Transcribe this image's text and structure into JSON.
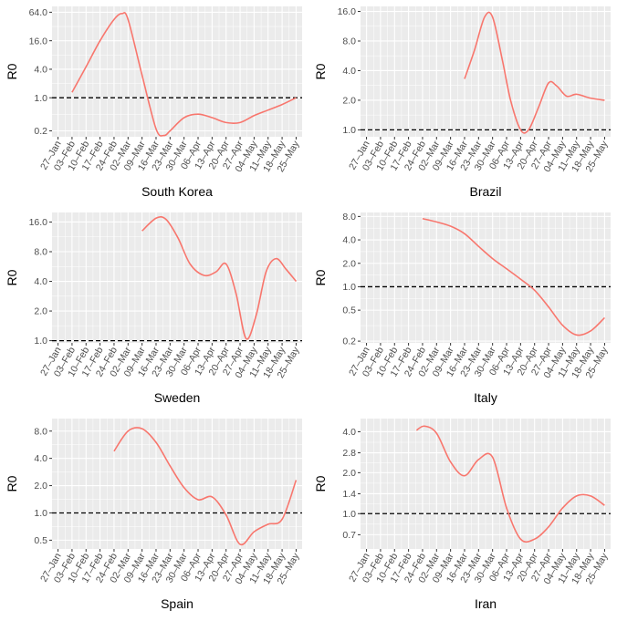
{
  "chart_data": [
    {
      "type": "line",
      "country": "South Korea",
      "ylabel": "R0",
      "y_ticks": [
        0.2,
        1.0,
        4.0,
        16.0,
        64.0
      ],
      "y_tick_labels": [
        "0.2",
        "1.0",
        "4.0",
        "16.0",
        "64.0"
      ],
      "ylim": [
        0.15,
        85
      ],
      "log_y": true,
      "reference_line": 1.0,
      "x": [
        "2020-02-03",
        "2020-02-10",
        "2020-02-17",
        "2020-02-24",
        "2020-02-28",
        "2020-03-02",
        "2020-03-09",
        "2020-03-16",
        "2020-03-20",
        "2020-03-23",
        "2020-03-30",
        "2020-04-06",
        "2020-04-13",
        "2020-04-20",
        "2020-04-27",
        "2020-05-04",
        "2020-05-11",
        "2020-05-18",
        "2020-05-25"
      ],
      "values": [
        1.3,
        4.5,
        16,
        45,
        60,
        45,
        3,
        0.22,
        0.16,
        0.2,
        0.38,
        0.45,
        0.38,
        0.3,
        0.3,
        0.42,
        0.55,
        0.72,
        1.0
      ]
    },
    {
      "type": "line",
      "country": "Brazil",
      "ylabel": "R0",
      "y_ticks": [
        1.0,
        2.0,
        4.0,
        8.0,
        16.0
      ],
      "y_tick_labels": [
        "1.0",
        "2.0",
        "4.0",
        "8.0",
        "16.0"
      ],
      "ylim": [
        0.85,
        18
      ],
      "log_y": true,
      "reference_line": 1.0,
      "x": [
        "2020-03-16",
        "2020-03-21",
        "2020-03-26",
        "2020-03-30",
        "2020-04-04",
        "2020-04-08",
        "2020-04-13",
        "2020-04-17",
        "2020-04-22",
        "2020-04-27",
        "2020-05-01",
        "2020-05-06",
        "2020-05-11",
        "2020-05-18",
        "2020-05-25"
      ],
      "values": [
        3.3,
        6.5,
        14,
        14,
        5,
        2,
        1.0,
        1.0,
        1.7,
        3,
        2.8,
        2.2,
        2.3,
        2.1,
        2.0
      ]
    },
    {
      "type": "line",
      "country": "Sweden",
      "ylabel": "R0",
      "y_ticks": [
        1.0,
        2.0,
        4.0,
        8.0,
        16.0
      ],
      "y_tick_labels": [
        "1.0",
        "2.0",
        "4.0",
        "8.0",
        "16.0"
      ],
      "ylim": [
        0.95,
        20
      ],
      "log_y": true,
      "reference_line": 1.0,
      "x": [
        "2020-03-09",
        "2020-03-16",
        "2020-03-21",
        "2020-03-27",
        "2020-04-02",
        "2020-04-09",
        "2020-04-15",
        "2020-04-20",
        "2020-04-25",
        "2020-04-30",
        "2020-05-05",
        "2020-05-10",
        "2020-05-15",
        "2020-05-20",
        "2020-05-25"
      ],
      "values": [
        13,
        17.5,
        17,
        11,
        6,
        4.6,
        5,
        6,
        3,
        1.05,
        1.8,
        5,
        6.8,
        5.3,
        4.0
      ]
    },
    {
      "type": "line",
      "country": "Italy",
      "ylabel": "R0",
      "y_ticks": [
        0.2,
        0.5,
        1.0,
        2.0,
        4.0,
        8.0
      ],
      "y_tick_labels": [
        "0.2",
        "0.5",
        "1.0",
        "2.0",
        "4.0",
        "8.0"
      ],
      "ylim": [
        0.19,
        9
      ],
      "log_y": true,
      "reference_line": 1.0,
      "x": [
        "2020-02-24",
        "2020-03-02",
        "2020-03-09",
        "2020-03-16",
        "2020-03-23",
        "2020-03-30",
        "2020-04-06",
        "2020-04-13",
        "2020-04-20",
        "2020-04-27",
        "2020-05-04",
        "2020-05-11",
        "2020-05-18",
        "2020-05-25"
      ],
      "values": [
        7.5,
        6.8,
        6,
        4.8,
        3.3,
        2.3,
        1.7,
        1.25,
        0.9,
        0.55,
        0.32,
        0.24,
        0.27,
        0.4
      ]
    },
    {
      "type": "line",
      "country": "Spain",
      "ylabel": "R0",
      "y_ticks": [
        0.5,
        1.0,
        2.0,
        4.0,
        8.0
      ],
      "y_tick_labels": [
        "0.5",
        "1.0",
        "2.0",
        "4.0",
        "8.0"
      ],
      "ylim": [
        0.4,
        11
      ],
      "log_y": true,
      "reference_line": 1.0,
      "x": [
        "2020-02-24",
        "2020-03-02",
        "2020-03-09",
        "2020-03-16",
        "2020-03-23",
        "2020-03-30",
        "2020-04-06",
        "2020-04-13",
        "2020-04-20",
        "2020-04-27",
        "2020-05-04",
        "2020-05-11",
        "2020-05-18",
        "2020-05-25"
      ],
      "values": [
        4.8,
        8,
        8.5,
        6,
        3.3,
        1.9,
        1.4,
        1.5,
        0.95,
        0.45,
        0.62,
        0.75,
        0.85,
        2.3
      ]
    },
    {
      "type": "line",
      "country": "Iran",
      "ylabel": "R0",
      "y_ticks": [
        0.7,
        1.0,
        1.4,
        2.0,
        2.8,
        4.0
      ],
      "y_tick_labels": [
        "0.7",
        "1.0",
        "1.4",
        "2.0",
        "2.8",
        "4.0"
      ],
      "ylim": [
        0.55,
        5
      ],
      "log_y": true,
      "reference_line": 1.0,
      "x": [
        "2020-02-21",
        "2020-02-25",
        "2020-03-02",
        "2020-03-09",
        "2020-03-16",
        "2020-03-23",
        "2020-03-30",
        "2020-04-06",
        "2020-04-13",
        "2020-04-20",
        "2020-04-27",
        "2020-05-04",
        "2020-05-11",
        "2020-05-18",
        "2020-05-25"
      ],
      "values": [
        4.1,
        4.4,
        3.9,
        2.4,
        1.9,
        2.5,
        2.6,
        1.1,
        0.65,
        0.65,
        0.8,
        1.1,
        1.35,
        1.35,
        1.15
      ]
    }
  ],
  "x_tick_labels": [
    "27–Jan",
    "03–Feb",
    "10–Feb",
    "17–Feb",
    "24–Feb",
    "02–Mar",
    "09–Mar",
    "16–Mar",
    "23–Mar",
    "30–Mar",
    "06–Apr",
    "13–Apr",
    "20–Apr",
    "27–Apr",
    "04–May",
    "11–May",
    "18–May",
    "25–May"
  ],
  "x_tick_dates": [
    "2020-01-27",
    "2020-02-03",
    "2020-02-10",
    "2020-02-17",
    "2020-02-24",
    "2020-03-02",
    "2020-03-09",
    "2020-03-16",
    "2020-03-23",
    "2020-03-30",
    "2020-04-06",
    "2020-04-13",
    "2020-04-20",
    "2020-04-27",
    "2020-05-04",
    "2020-05-11",
    "2020-05-18",
    "2020-05-25"
  ],
  "colors": {
    "line": "#f8766d",
    "panel_background": "#ebebeb",
    "grid": "#ffffff",
    "reference_line": "#000000"
  }
}
